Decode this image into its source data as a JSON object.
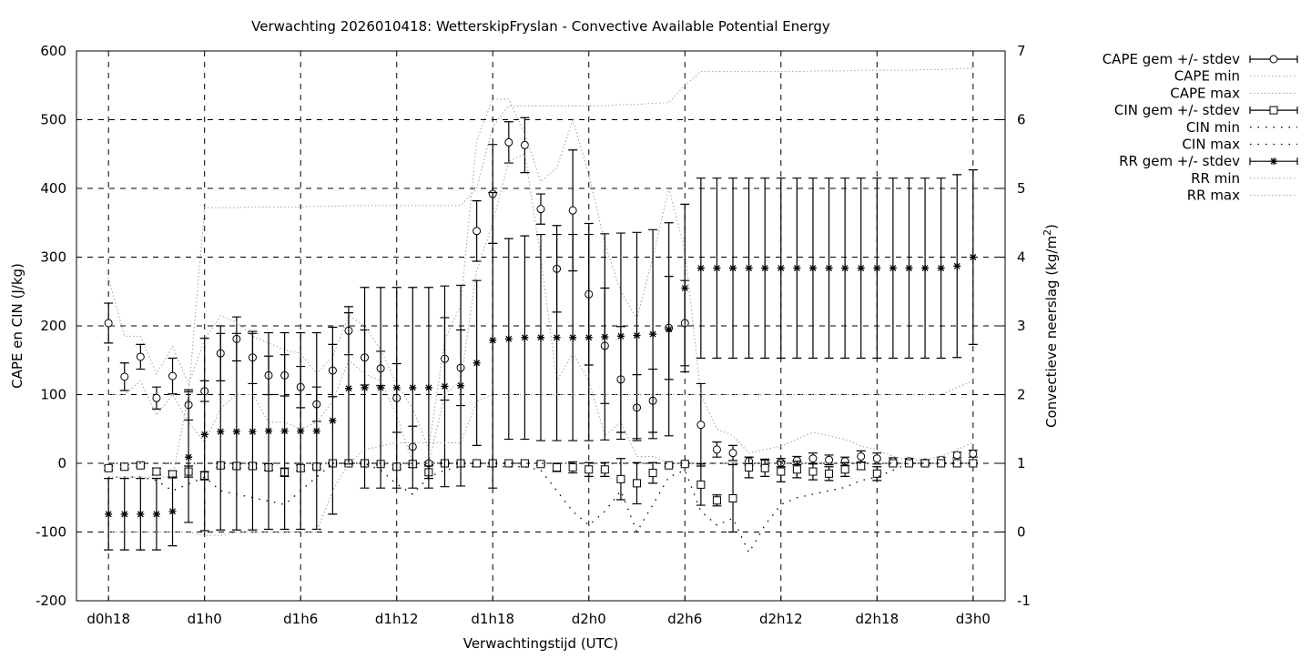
{
  "chart_data": {
    "type": "line",
    "title": "Verwachting 2026010418: WetterskipFryslan - Convective Available Potential Energy",
    "xlabel": "Verwachtingstijd (UTC)",
    "ylabel": "CAPE en CIN (J/kg)",
    "y2label": "Convectieve neerslag (kg/m",
    "y2label_sup": "2",
    "y2label_end": ")",
    "xlim_hours": [
      16,
      74
    ],
    "ylim": [
      -200,
      600
    ],
    "y2lim": [
      -1,
      7
    ],
    "grid": true,
    "legend_position": "outside-right",
    "x_ticks": [
      {
        "hour": 18,
        "label": "d0h18"
      },
      {
        "hour": 24,
        "label": "d1h0"
      },
      {
        "hour": 30,
        "label": "d1h6"
      },
      {
        "hour": 36,
        "label": "d1h12"
      },
      {
        "hour": 42,
        "label": "d1h18"
      },
      {
        "hour": 48,
        "label": "d2h0"
      },
      {
        "hour": 54,
        "label": "d2h6"
      },
      {
        "hour": 60,
        "label": "d2h12"
      },
      {
        "hour": 66,
        "label": "d2h18"
      },
      {
        "hour": 72,
        "label": "d3h0"
      }
    ],
    "y_ticks": [
      "600",
      "500",
      "400",
      "300",
      "200",
      "100",
      "0",
      "-100",
      "-200"
    ],
    "y2_ticks": [
      "7",
      "6",
      "5",
      "4",
      "3",
      "2",
      "1",
      "0",
      "-1"
    ],
    "hours_start": 18,
    "series": [
      {
        "name": "CAPE gem +/- stdev",
        "axis": "y",
        "style": "errorbar-circle",
        "values": [
          204,
          126,
          155,
          95,
          127,
          85,
          105,
          160,
          181,
          154,
          128,
          128,
          111,
          86,
          135,
          193,
          154,
          138,
          95,
          24,
          0,
          152,
          139,
          338,
          392,
          467,
          463,
          370,
          283,
          368,
          246,
          171,
          122,
          81,
          91,
          197,
          204,
          56,
          20,
          15,
          3,
          1,
          1,
          4,
          7,
          5,
          3,
          10,
          7,
          3,
          3,
          1,
          5,
          12,
          14
        ],
        "stdev": [
          29,
          20,
          18,
          16,
          26,
          22,
          15,
          40,
          32,
          38,
          28,
          30,
          30,
          25,
          38,
          35,
          40,
          25,
          50,
          30,
          2,
          60,
          55,
          44,
          72,
          30,
          40,
          22,
          63,
          88,
          103,
          84,
          77,
          48,
          46,
          75,
          62,
          60,
          11,
          11,
          6,
          5,
          6,
          6,
          8,
          7,
          6,
          8,
          8,
          5,
          4,
          4,
          4,
          4,
          5
        ]
      },
      {
        "name": "CAPE min",
        "axis": "y",
        "style": "dotted",
        "values": [
          100,
          100,
          120,
          70,
          100,
          60,
          30,
          80,
          100,
          100,
          60,
          60,
          50,
          60,
          90,
          150,
          130,
          120,
          70,
          0,
          0,
          100,
          120,
          280,
          350,
          440,
          450,
          300,
          120,
          160,
          120,
          40,
          60,
          10,
          10,
          0,
          0,
          0,
          0,
          0,
          0,
          0,
          0,
          0,
          0,
          0,
          0,
          0,
          0,
          0,
          0,
          0,
          0,
          0,
          0
        ]
      },
      {
        "name": "CAPE max",
        "axis": "y",
        "style": "dotted",
        "values": [
          270,
          185,
          185,
          130,
          170,
          115,
          180,
          215,
          205,
          185,
          175,
          165,
          160,
          130,
          155,
          215,
          200,
          165,
          115,
          80,
          20,
          180,
          230,
          470,
          530,
          530,
          480,
          410,
          430,
          500,
          420,
          320,
          250,
          210,
          300,
          400,
          310,
          100,
          50,
          40,
          15,
          20,
          25,
          35,
          45,
          40,
          35,
          25,
          20,
          10,
          5,
          5,
          10,
          20,
          30
        ]
      },
      {
        "name": "CIN gem +/- stdev",
        "axis": "y",
        "style": "errorbar-square",
        "values": [
          -7,
          -5,
          -3,
          -12,
          -16,
          -12,
          -18,
          -3,
          -4,
          -4,
          -6,
          -13,
          -7,
          -5,
          0,
          0,
          0,
          -1,
          -5,
          -1,
          -13,
          0,
          0,
          0,
          0,
          0,
          0,
          -1,
          -6,
          -6,
          -9,
          -9,
          -23,
          -29,
          -14,
          -3,
          -1,
          -31,
          -54,
          -51,
          -6,
          -7,
          -12,
          -9,
          -12,
          -15,
          -9,
          -4,
          -15,
          0,
          0,
          0,
          0,
          0,
          0
        ],
        "stdev": [
          3,
          3,
          2,
          5,
          5,
          8,
          6,
          3,
          3,
          3,
          4,
          6,
          4,
          3,
          1,
          1,
          1,
          1,
          3,
          1,
          9,
          1,
          1,
          1,
          1,
          1,
          1,
          2,
          6,
          8,
          10,
          10,
          30,
          30,
          15,
          2,
          2,
          30,
          8,
          49,
          15,
          12,
          15,
          12,
          12,
          10,
          10,
          5,
          10,
          1,
          1,
          1,
          1,
          1,
          1
        ]
      },
      {
        "name": "CIN min",
        "axis": "y",
        "style": "dotted-dark",
        "values": [
          -20,
          -20,
          -20,
          -25,
          -40,
          -30,
          -20,
          -40,
          -45,
          -50,
          -55,
          -60,
          -40,
          -20,
          0,
          0,
          0,
          -10,
          -30,
          -45,
          -20,
          -10,
          -5,
          -5,
          -5,
          -5,
          -5,
          -10,
          -40,
          -70,
          -90,
          -70,
          -40,
          -100,
          -60,
          -20,
          -10,
          -70,
          -90,
          -80,
          -130,
          -90,
          -60,
          -50,
          -45,
          -40,
          -35,
          -25,
          -20,
          -10,
          0,
          0,
          0,
          0,
          0
        ]
      },
      {
        "name": "CIN max",
        "axis": "y",
        "style": "dotted-dark",
        "values": [
          0,
          0,
          0,
          0,
          0,
          0,
          0,
          0,
          0,
          0,
          0,
          0,
          0,
          0,
          0,
          0,
          0,
          0,
          0,
          0,
          0,
          0,
          0,
          0,
          0,
          0,
          0,
          0,
          0,
          0,
          0,
          0,
          0,
          0,
          0,
          0,
          0,
          0,
          0,
          0,
          0,
          0,
          0,
          0,
          0,
          0,
          0,
          0,
          0,
          0,
          0,
          0,
          0,
          0,
          0
        ]
      },
      {
        "name": "RR gem +/- stdev",
        "axis": "y2",
        "style": "errorbar-star",
        "values": [
          0.26,
          0.26,
          0.26,
          0.26,
          0.3,
          1.09,
          1.42,
          1.46,
          1.46,
          1.46,
          1.47,
          1.47,
          1.47,
          1.47,
          1.62,
          2.09,
          2.1,
          2.1,
          2.1,
          2.1,
          2.1,
          2.12,
          2.13,
          2.46,
          2.79,
          2.81,
          2.83,
          2.83,
          2.83,
          2.83,
          2.83,
          2.84,
          2.85,
          2.86,
          2.88,
          2.95,
          3.55,
          3.84,
          3.84,
          3.84,
          3.84,
          3.84,
          3.84,
          3.84,
          3.84,
          3.84,
          3.84,
          3.84,
          3.84,
          3.84,
          3.84,
          3.84,
          3.84,
          3.87,
          4.0
        ],
        "stdev": [
          0.52,
          0.52,
          0.52,
          0.52,
          0.5,
          0.95,
          1.4,
          1.43,
          1.43,
          1.43,
          1.43,
          1.43,
          1.43,
          1.43,
          1.36,
          1.1,
          1.46,
          1.46,
          1.46,
          1.46,
          1.46,
          1.46,
          1.46,
          1.2,
          2.15,
          1.46,
          1.48,
          1.5,
          1.5,
          1.5,
          1.5,
          1.5,
          1.5,
          1.5,
          1.52,
          1.55,
          1.22,
          1.31,
          1.31,
          1.31,
          1.31,
          1.31,
          1.31,
          1.31,
          1.31,
          1.31,
          1.31,
          1.31,
          1.31,
          1.31,
          1.31,
          1.31,
          1.31,
          1.33,
          1.27
        ]
      },
      {
        "name": "RR min",
        "axis": "y2",
        "style": "dotted",
        "values": [
          0,
          0,
          0,
          0,
          0,
          0,
          -0.05,
          -0.05,
          0,
          0,
          0,
          0,
          0,
          0,
          0.6,
          1.0,
          1.2,
          1.25,
          1.3,
          1.3,
          1.3,
          1.3,
          1.3,
          1.9,
          2.0,
          2.0,
          2.0,
          2.0,
          2.0,
          2.0,
          2.0,
          2.0,
          2.0,
          2.0,
          2.0,
          2.0,
          2.0,
          2.0,
          2.0,
          2.0,
          2.0,
          2.0,
          2.0,
          2.0,
          2.0,
          2.0,
          2.0,
          2.0,
          2.0,
          2.0,
          2.0,
          2.0,
          2.0,
          2.1,
          2.2
        ]
      },
      {
        "name": "RR max",
        "axis": "y2",
        "style": "dotted",
        "values": [
          0.8,
          0.8,
          0.8,
          0.8,
          0.8,
          2.0,
          4.72,
          4.72,
          4.72,
          4.73,
          4.73,
          4.73,
          4.73,
          4.74,
          4.74,
          4.75,
          4.75,
          4.75,
          4.75,
          4.75,
          4.75,
          4.75,
          4.75,
          5.0,
          5.9,
          6.2,
          6.2,
          6.2,
          6.2,
          6.2,
          6.2,
          6.2,
          6.22,
          6.22,
          6.24,
          6.25,
          6.5,
          6.7,
          6.7,
          6.7,
          6.7,
          6.7,
          6.7,
          6.7,
          6.71,
          6.71,
          6.71,
          6.72,
          6.72,
          6.72,
          6.72,
          6.73,
          6.73,
          6.74,
          6.75
        ]
      }
    ]
  },
  "colors": {
    "main": "#000000",
    "gray": "#a0a0a0",
    "dark_dotted": "#000000"
  }
}
